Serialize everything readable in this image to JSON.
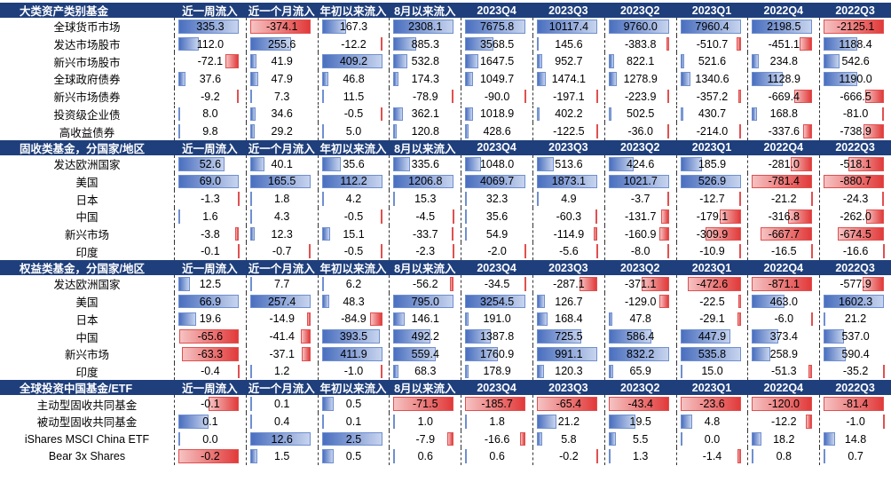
{
  "sections": [
    {
      "title": "大类资产类别基金",
      "headers": [
        "近一周流入",
        "近一个月流入",
        "年初以来流入",
        "8月以来流入",
        "2023Q4",
        "2023Q3",
        "2023Q2",
        "2023Q1",
        "2022Q4",
        "2022Q3"
      ],
      "rows": [
        {
          "label": "全球货币市场",
          "values": [
            "335.3",
            "-374.1",
            "167.3",
            "2308.1",
            "7675.8",
            "10117.4",
            "9760.0",
            "7960.4",
            "2198.5",
            "-2125.1"
          ]
        },
        {
          "label": "发达市场股市",
          "values": [
            "112.0",
            "255.6",
            "-12.2",
            "885.3",
            "3568.5",
            "145.6",
            "-383.8",
            "-510.7",
            "-451.1",
            "1188.4"
          ]
        },
        {
          "label": "新兴市场股市",
          "values": [
            "-72.1",
            "41.9",
            "409.2",
            "532.8",
            "1647.5",
            "952.7",
            "822.1",
            "521.6",
            "234.8",
            "542.6"
          ]
        },
        {
          "label": "全球政府债券",
          "values": [
            "37.6",
            "47.9",
            "46.8",
            "174.3",
            "1049.7",
            "1474.1",
            "1278.9",
            "1340.6",
            "1128.9",
            "1190.0"
          ]
        },
        {
          "label": "新兴市场债券",
          "values": [
            "-9.2",
            "7.3",
            "11.5",
            "-78.9",
            "-90.0",
            "-197.1",
            "-223.9",
            "-357.2",
            "-669.4",
            "-666.5"
          ]
        },
        {
          "label": "投资级企业债",
          "values": [
            "8.0",
            "34.6",
            "-0.5",
            "362.1",
            "1018.9",
            "402.2",
            "502.5",
            "430.7",
            "168.8",
            "-81.0"
          ]
        },
        {
          "label": "高收益债券",
          "values": [
            "9.8",
            "29.2",
            "5.0",
            "120.8",
            "428.6",
            "-122.5",
            "-36.0",
            "-214.0",
            "-337.6",
            "-738.9"
          ]
        }
      ]
    },
    {
      "title": "固收类基金，分国家/地区",
      "headers": [
        "近一周流入",
        "近一个月流入",
        "年初以来流入",
        "8月以来流入",
        "2023Q4",
        "2023Q3",
        "2023Q2",
        "2023Q1",
        "2022Q4",
        "2022Q3"
      ],
      "rows": [
        {
          "label": "发达欧洲国家",
          "values": [
            "52.6",
            "40.1",
            "35.6",
            "335.6",
            "1048.0",
            "513.6",
            "424.6",
            "185.9",
            "-281.0",
            "-518.1"
          ]
        },
        {
          "label": "美国",
          "values": [
            "69.0",
            "165.5",
            "112.2",
            "1206.8",
            "4069.7",
            "1873.1",
            "1021.7",
            "526.9",
            "-781.4",
            "-880.7"
          ]
        },
        {
          "label": "日本",
          "values": [
            "-1.3",
            "1.8",
            "4.2",
            "15.3",
            "32.3",
            "4.9",
            "-3.7",
            "-12.7",
            "-21.2",
            "-24.3"
          ]
        },
        {
          "label": "中国",
          "values": [
            "1.6",
            "4.3",
            "-0.5",
            "-4.5",
            "35.6",
            "-60.3",
            "-131.7",
            "-179.1",
            "-316.8",
            "-262.0"
          ]
        },
        {
          "label": "新兴市场",
          "values": [
            "-3.8",
            "12.3",
            "15.1",
            "-33.7",
            "54.9",
            "-114.9",
            "-160.9",
            "-309.9",
            "-667.7",
            "-674.5"
          ]
        },
        {
          "label": "印度",
          "values": [
            "-0.1",
            "-0.7",
            "-0.5",
            "-2.3",
            "-2.0",
            "-5.6",
            "-8.0",
            "-10.9",
            "-16.5",
            "-16.6"
          ]
        }
      ]
    },
    {
      "title": "权益类基金，分国家/地区",
      "headers": [
        "近一周流入",
        "近一个月流入",
        "年初以来流入",
        "8月以来流入",
        "2023Q4",
        "2023Q3",
        "2023Q2",
        "2023Q1",
        "2022Q4",
        "2022Q3"
      ],
      "rows": [
        {
          "label": "发达欧洲国家",
          "values": [
            "12.5",
            "7.7",
            "6.2",
            "-56.2",
            "-34.5",
            "-287.1",
            "-371.1",
            "-472.6",
            "-871.1",
            "-577.9"
          ]
        },
        {
          "label": "美国",
          "values": [
            "66.9",
            "257.4",
            "48.3",
            "795.0",
            "3254.5",
            "126.7",
            "-129.0",
            "-22.5",
            "463.0",
            "1602.3"
          ]
        },
        {
          "label": "日本",
          "values": [
            "19.6",
            "-14.9",
            "-84.9",
            "146.1",
            "191.0",
            "168.4",
            "47.8",
            "-29.1",
            "-6.0",
            "21.2"
          ]
        },
        {
          "label": "中国",
          "values": [
            "-65.6",
            "-41.4",
            "393.5",
            "492.2",
            "1387.8",
            "725.5",
            "586.4",
            "447.9",
            "373.4",
            "537.0"
          ]
        },
        {
          "label": "新兴市场",
          "values": [
            "-63.3",
            "-37.1",
            "411.9",
            "559.4",
            "1760.9",
            "991.1",
            "832.2",
            "535.8",
            "258.9",
            "590.4"
          ]
        },
        {
          "label": "印度",
          "values": [
            "-0.4",
            "1.2",
            "-1.0",
            "68.3",
            "178.9",
            "120.3",
            "65.9",
            "15.0",
            "-51.3",
            "-35.2"
          ]
        }
      ]
    },
    {
      "title": "全球投资中国基金/ETF",
      "headers": [
        "近一周流入",
        "近一个月流入",
        "年初以来流入",
        "8月以来流入",
        "2023Q4",
        "2023Q3",
        "2023Q2",
        "2023Q1",
        "2022Q4",
        "2022Q3"
      ],
      "rows": [
        {
          "label": "主动型固收共同基金",
          "values": [
            "-0.1",
            "0.1",
            "0.5",
            "-71.5",
            "-185.7",
            "-65.4",
            "-43.4",
            "-23.6",
            "-120.0",
            "-81.4"
          ]
        },
        {
          "label": "被动型固收共同基金",
          "values": [
            "0.1",
            "0.4",
            "0.1",
            "1.0",
            "1.8",
            "21.2",
            "19.5",
            "4.8",
            "-12.2",
            "-1.0"
          ]
        },
        {
          "label": "iShares MSCI China ETF",
          "values": [
            "0.0",
            "12.6",
            "2.5",
            "-7.9",
            "-16.6",
            "5.8",
            "5.5",
            "0.0",
            "18.2",
            "14.8"
          ]
        },
        {
          "label": "Bear 3x Shares",
          "values": [
            "-0.2",
            "1.5",
            "0.5",
            "0.6",
            "0.6",
            "-0.2",
            "1.3",
            "-1.4",
            "0.8",
            "0.7"
          ]
        }
      ]
    }
  ],
  "colors": {
    "header_bg": "#1f3f7c",
    "positive": "#4a6fbf",
    "negative": "#e23a3a"
  }
}
